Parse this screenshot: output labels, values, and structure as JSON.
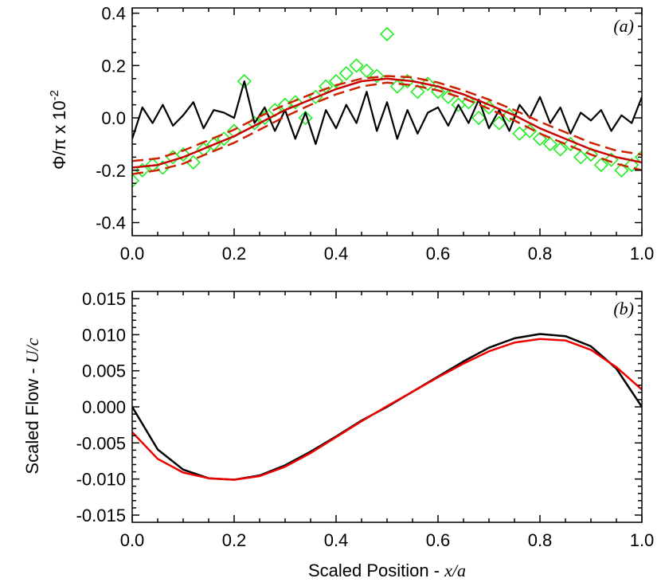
{
  "chart_data": [
    {
      "type": "scatter",
      "panel_label": "(a)",
      "ylabel": "Φ/π x 10",
      "ylabel_exponent": "-2",
      "xlim": [
        0.0,
        1.0
      ],
      "ylim": [
        -0.45,
        0.42
      ],
      "x_ticks": [
        "0.0",
        "0.2",
        "0.4",
        "0.6",
        "0.8",
        "1.0"
      ],
      "y_ticks": [
        "-0.4",
        "-0.2",
        "0.0",
        "0.2",
        "0.4"
      ],
      "colors": {
        "scatter": "#22ee22",
        "noise": "#000000",
        "fit": "#cc0000",
        "fit_band": "#cc2200"
      },
      "series": [
        {
          "kind": "scatter-diamonds",
          "x": [
            0.0,
            0.02,
            0.04,
            0.06,
            0.08,
            0.1,
            0.12,
            0.14,
            0.16,
            0.18,
            0.2,
            0.22,
            0.24,
            0.26,
            0.28,
            0.3,
            0.32,
            0.34,
            0.36,
            0.38,
            0.4,
            0.42,
            0.44,
            0.46,
            0.48,
            0.5,
            0.52,
            0.54,
            0.56,
            0.58,
            0.6,
            0.62,
            0.64,
            0.66,
            0.68,
            0.7,
            0.72,
            0.74,
            0.76,
            0.78,
            0.8,
            0.82,
            0.84,
            0.86,
            0.88,
            0.9,
            0.92,
            0.94,
            0.96,
            0.98,
            1.0
          ],
          "y": [
            -0.24,
            -0.2,
            -0.18,
            -0.19,
            -0.15,
            -0.14,
            -0.17,
            -0.12,
            -0.1,
            -0.08,
            -0.05,
            0.14,
            -0.02,
            0.0,
            0.03,
            0.05,
            0.06,
            0.0,
            0.08,
            0.12,
            0.14,
            0.17,
            0.2,
            0.18,
            0.16,
            0.32,
            0.12,
            0.14,
            0.1,
            0.13,
            0.1,
            0.08,
            0.05,
            0.06,
            0.0,
            0.04,
            -0.02,
            0.01,
            -0.06,
            -0.05,
            -0.08,
            -0.1,
            -0.12,
            -0.1,
            -0.15,
            -0.14,
            -0.18,
            -0.16,
            -0.2,
            -0.18,
            -0.15
          ]
        },
        {
          "kind": "noise-line",
          "x": [
            0.0,
            0.02,
            0.04,
            0.06,
            0.08,
            0.1,
            0.12,
            0.14,
            0.16,
            0.18,
            0.2,
            0.22,
            0.24,
            0.26,
            0.28,
            0.3,
            0.32,
            0.34,
            0.36,
            0.38,
            0.4,
            0.42,
            0.44,
            0.46,
            0.48,
            0.5,
            0.52,
            0.54,
            0.56,
            0.58,
            0.6,
            0.62,
            0.64,
            0.66,
            0.68,
            0.7,
            0.72,
            0.74,
            0.76,
            0.78,
            0.8,
            0.82,
            0.84,
            0.86,
            0.88,
            0.9,
            0.92,
            0.94,
            0.96,
            0.98,
            1.0
          ],
          "y": [
            -0.08,
            0.04,
            -0.02,
            0.05,
            -0.03,
            0.01,
            0.06,
            -0.04,
            0.03,
            0.02,
            0.0,
            0.14,
            -0.02,
            0.04,
            -0.05,
            0.03,
            -0.08,
            0.02,
            -0.1,
            0.03,
            -0.04,
            0.05,
            -0.02,
            0.1,
            -0.05,
            0.06,
            -0.08,
            0.03,
            -0.06,
            0.02,
            0.04,
            -0.03,
            0.05,
            -0.02,
            0.07,
            -0.04,
            0.03,
            -0.05,
            0.05,
            0.0,
            0.08,
            -0.02,
            0.04,
            -0.06,
            0.02,
            -0.01,
            0.03,
            -0.05,
            0.01,
            -0.02,
            0.08
          ]
        },
        {
          "kind": "fit-solid",
          "x": [
            0.0,
            0.05,
            0.1,
            0.15,
            0.2,
            0.25,
            0.3,
            0.35,
            0.4,
            0.45,
            0.5,
            0.55,
            0.6,
            0.65,
            0.7,
            0.75,
            0.8,
            0.85,
            0.9,
            0.95,
            1.0
          ],
          "y": [
            -0.19,
            -0.18,
            -0.15,
            -0.11,
            -0.07,
            -0.02,
            0.03,
            0.07,
            0.11,
            0.14,
            0.15,
            0.14,
            0.12,
            0.09,
            0.05,
            0.01,
            -0.04,
            -0.08,
            -0.12,
            -0.15,
            -0.17
          ]
        },
        {
          "kind": "fit-dashed-upper",
          "x": [
            0.0,
            0.05,
            0.1,
            0.15,
            0.2,
            0.25,
            0.3,
            0.35,
            0.4,
            0.45,
            0.5,
            0.55,
            0.6,
            0.65,
            0.7,
            0.75,
            0.8,
            0.85,
            0.9,
            0.95,
            1.0
          ],
          "y": [
            -0.165,
            -0.155,
            -0.125,
            -0.085,
            -0.045,
            0.005,
            0.05,
            0.09,
            0.125,
            0.15,
            0.16,
            0.155,
            0.135,
            0.105,
            0.07,
            0.03,
            -0.015,
            -0.055,
            -0.095,
            -0.125,
            -0.14
          ]
        },
        {
          "kind": "fit-dashed-lower",
          "x": [
            0.0,
            0.05,
            0.1,
            0.15,
            0.2,
            0.25,
            0.3,
            0.35,
            0.4,
            0.45,
            0.5,
            0.55,
            0.6,
            0.65,
            0.7,
            0.75,
            0.8,
            0.85,
            0.9,
            0.95,
            1.0
          ],
          "y": [
            -0.215,
            -0.2,
            -0.175,
            -0.135,
            -0.095,
            -0.045,
            0.005,
            0.05,
            0.09,
            0.12,
            0.135,
            0.125,
            0.105,
            0.075,
            0.035,
            -0.01,
            -0.06,
            -0.1,
            -0.14,
            -0.175,
            -0.2
          ]
        }
      ]
    },
    {
      "type": "line",
      "panel_label": "(b)",
      "ylabel": "Scaled Flow - ",
      "ylabel_italic": "U/c",
      "xlabel": "Scaled Position - ",
      "xlabel_italic": "x/a",
      "xlim": [
        0.0,
        1.0
      ],
      "ylim": [
        -0.016,
        0.016
      ],
      "x_ticks": [
        "0.0",
        "0.2",
        "0.4",
        "0.6",
        "0.8",
        "1.0"
      ],
      "y_ticks": [
        "0.015",
        "0.010",
        "0.005",
        "0.000",
        "-0.005",
        "-0.010",
        "-0.015"
      ],
      "colors": {
        "black_curve": "#000000",
        "red_curve": "#ee0000"
      },
      "series": [
        {
          "kind": "curve-black",
          "x": [
            0.0,
            0.05,
            0.1,
            0.15,
            0.2,
            0.25,
            0.3,
            0.35,
            0.4,
            0.45,
            0.5,
            0.55,
            0.6,
            0.65,
            0.7,
            0.75,
            0.8,
            0.85,
            0.9,
            0.95,
            1.0
          ],
          "y": [
            0.0,
            -0.0059,
            -0.0087,
            -0.0099,
            -0.0101,
            -0.0095,
            -0.0081,
            -0.0062,
            -0.0041,
            -0.0019,
            0.0,
            0.0021,
            0.0042,
            0.0063,
            0.0082,
            0.0095,
            0.0101,
            0.0098,
            0.0084,
            0.0053,
            0.0
          ]
        },
        {
          "kind": "curve-red",
          "x": [
            0.0,
            0.05,
            0.1,
            0.15,
            0.2,
            0.25,
            0.3,
            0.35,
            0.4,
            0.45,
            0.5,
            0.55,
            0.6,
            0.65,
            0.7,
            0.75,
            0.8,
            0.85,
            0.9,
            0.95,
            1.0
          ],
          "y": [
            -0.0035,
            -0.0072,
            -0.0091,
            -0.0099,
            -0.0101,
            -0.0096,
            -0.0083,
            -0.0064,
            -0.0042,
            -0.002,
            0.0001,
            0.0021,
            0.0041,
            0.006,
            0.0077,
            0.0089,
            0.0094,
            0.0092,
            0.0079,
            0.0055,
            0.0024
          ]
        }
      ]
    }
  ]
}
